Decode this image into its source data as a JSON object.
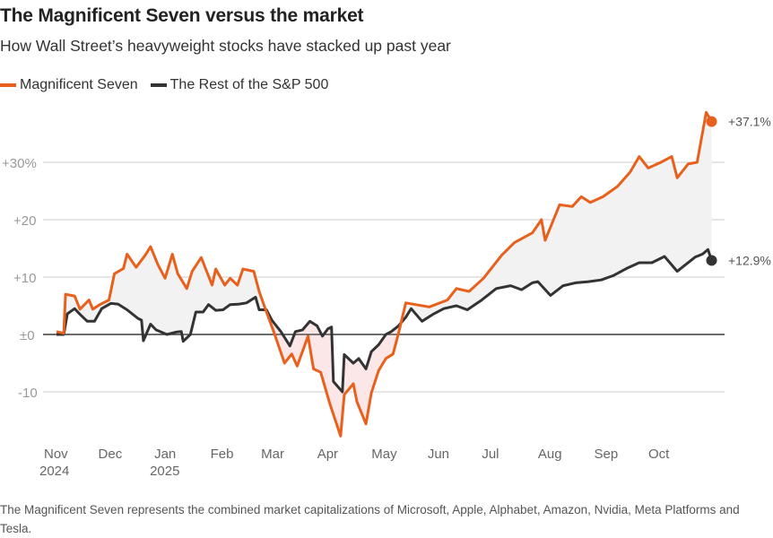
{
  "title": "The Magnificent Seven versus the market",
  "subtitle": "How Wall Street’s heavyweight stocks have stacked up past year",
  "footnote": "The Magnificent Seven represents the combined market capitalizations of Microsoft, Apple, Alphabet, Amazon, Nvidia, Meta Platforms and Tesla.",
  "chart_data": {
    "type": "line",
    "title": "The Magnificent Seven versus the market",
    "xlabel": "",
    "ylabel": "",
    "ylim": [
      -18,
      40
    ],
    "yticks": [
      {
        "v": 30,
        "label": "+30%"
      },
      {
        "v": 20,
        "label": "+20"
      },
      {
        "v": 10,
        "label": "+10"
      },
      {
        "v": 0,
        "label": "±0"
      },
      {
        "v": -10,
        "label": "-10"
      }
    ],
    "xticks": [
      {
        "d": "2024-11-01",
        "label": "Nov",
        "sub": "2024"
      },
      {
        "d": "2024-12-01",
        "label": "Dec"
      },
      {
        "d": "2025-01-01",
        "label": "Jan",
        "sub": "2025"
      },
      {
        "d": "2025-02-01",
        "label": "Feb"
      },
      {
        "d": "2025-03-01",
        "label": "Mar"
      },
      {
        "d": "2025-04-01",
        "label": "Apr"
      },
      {
        "d": "2025-05-01",
        "label": "May"
      },
      {
        "d": "2025-06-01",
        "label": "Jun"
      },
      {
        "d": "2025-07-01",
        "label": "Jul"
      },
      {
        "d": "2025-08-01",
        "label": "Aug"
      },
      {
        "d": "2025-09-01",
        "label": "Sep"
      },
      {
        "d": "2025-10-01",
        "label": "Oct"
      }
    ],
    "grid": true,
    "legend": "top-left",
    "series": [
      {
        "name": "Magnificent Seven",
        "color": "#e8601c",
        "end_label": "+37.1%",
        "points": [
          [
            "2024-11-01",
            0.5
          ],
          [
            "2024-11-05",
            0.2
          ],
          [
            "2024-11-06",
            7
          ],
          [
            "2024-11-11",
            6.7
          ],
          [
            "2024-11-14",
            4.4
          ],
          [
            "2024-11-19",
            6
          ],
          [
            "2024-11-21",
            4.4
          ],
          [
            "2024-11-25",
            5.2
          ],
          [
            "2024-11-30",
            6
          ],
          [
            "2024-12-03",
            10.6
          ],
          [
            "2024-12-08",
            11.5
          ],
          [
            "2024-12-10",
            14
          ],
          [
            "2024-12-15",
            11.7
          ],
          [
            "2024-12-20",
            13.8
          ],
          [
            "2024-12-23",
            15.3
          ],
          [
            "2024-12-27",
            12.2
          ],
          [
            "2024-12-31",
            9.8
          ],
          [
            "2025-01-04",
            14
          ],
          [
            "2025-01-07",
            10.6
          ],
          [
            "2025-01-12",
            8
          ],
          [
            "2025-01-15",
            11
          ],
          [
            "2025-01-20",
            13.4
          ],
          [
            "2025-01-26",
            8.6
          ],
          [
            "2025-01-28",
            11.4
          ],
          [
            "2025-02-02",
            8.6
          ],
          [
            "2025-02-05",
            9.8
          ],
          [
            "2025-02-09",
            8.6
          ],
          [
            "2025-02-12",
            11.4
          ],
          [
            "2025-02-18",
            11
          ],
          [
            "2025-02-21",
            7.5
          ],
          [
            "2025-02-24",
            4.8
          ],
          [
            "2025-03-01",
            0.5
          ],
          [
            "2025-03-07",
            -5
          ],
          [
            "2025-03-11",
            -3.4
          ],
          [
            "2025-03-14",
            -5.5
          ],
          [
            "2025-03-20",
            -0.3
          ],
          [
            "2025-03-23",
            -6
          ],
          [
            "2025-03-27",
            -6.6
          ],
          [
            "2025-04-01",
            -12
          ],
          [
            "2025-04-07",
            -17.7
          ],
          [
            "2025-04-09",
            -10.5
          ],
          [
            "2025-04-14",
            -8.6
          ],
          [
            "2025-04-16",
            -11.7
          ],
          [
            "2025-04-21",
            -15.6
          ],
          [
            "2025-04-24",
            -10.2
          ],
          [
            "2025-04-28",
            -6.3
          ],
          [
            "2025-05-02",
            -4.2
          ],
          [
            "2025-05-06",
            -3.4
          ],
          [
            "2025-05-09",
            0.2
          ],
          [
            "2025-05-13",
            5.5
          ],
          [
            "2025-05-26",
            4.8
          ],
          [
            "2025-06-05",
            6
          ],
          [
            "2025-06-10",
            8
          ],
          [
            "2025-06-17",
            7.5
          ],
          [
            "2025-06-25",
            9.8
          ],
          [
            "2025-07-05",
            13.8
          ],
          [
            "2025-07-12",
            16
          ],
          [
            "2025-07-22",
            17.7
          ],
          [
            "2025-07-27",
            20
          ],
          [
            "2025-07-29",
            16.4
          ],
          [
            "2025-08-06",
            22.6
          ],
          [
            "2025-08-13",
            22.3
          ],
          [
            "2025-08-18",
            24
          ],
          [
            "2025-08-23",
            23
          ],
          [
            "2025-08-30",
            24
          ],
          [
            "2025-09-07",
            25.8
          ],
          [
            "2025-09-14",
            28.3
          ],
          [
            "2025-09-19",
            31
          ],
          [
            "2025-09-24",
            29
          ],
          [
            "2025-10-01",
            30
          ],
          [
            "2025-10-07",
            31
          ],
          [
            "2025-10-10",
            27.3
          ],
          [
            "2025-10-16",
            29.7
          ],
          [
            "2025-10-21",
            30
          ],
          [
            "2025-10-26",
            38.7
          ],
          [
            "2025-10-29",
            37.1
          ]
        ]
      },
      {
        "name": "The Rest of the S&P 500",
        "color": "#333333",
        "end_label": "+12.9%",
        "points": [
          [
            "2024-11-01",
            0
          ],
          [
            "2024-11-05",
            0
          ],
          [
            "2024-11-07",
            3.6
          ],
          [
            "2024-11-11",
            4.5
          ],
          [
            "2024-11-14",
            3.5
          ],
          [
            "2024-11-18",
            2.3
          ],
          [
            "2024-11-22",
            2.3
          ],
          [
            "2024-11-26",
            4.5
          ],
          [
            "2024-12-01",
            5.4
          ],
          [
            "2024-12-05",
            5.3
          ],
          [
            "2024-12-10",
            4.3
          ],
          [
            "2024-12-16",
            2.8
          ],
          [
            "2024-12-18",
            2.5
          ],
          [
            "2024-12-19",
            -1.1
          ],
          [
            "2024-12-23",
            1.8
          ],
          [
            "2024-12-26",
            0.8
          ],
          [
            "2025-01-01",
            0
          ],
          [
            "2025-01-06",
            0.4
          ],
          [
            "2025-01-09",
            0.5
          ],
          [
            "2025-01-10",
            -1.2
          ],
          [
            "2025-01-14",
            0
          ],
          [
            "2025-01-17",
            3.9
          ],
          [
            "2025-01-21",
            3.9
          ],
          [
            "2025-01-24",
            5.2
          ],
          [
            "2025-01-28",
            4.2
          ],
          [
            "2025-02-01",
            4.3
          ],
          [
            "2025-02-05",
            5.2
          ],
          [
            "2025-02-10",
            5.3
          ],
          [
            "2025-02-14",
            5.5
          ],
          [
            "2025-02-19",
            6.5
          ],
          [
            "2025-02-21",
            4.3
          ],
          [
            "2025-02-25",
            4.3
          ],
          [
            "2025-02-28",
            2.5
          ],
          [
            "2025-03-05",
            0.5
          ],
          [
            "2025-03-10",
            -2
          ],
          [
            "2025-03-13",
            0.5
          ],
          [
            "2025-03-17",
            0.8
          ],
          [
            "2025-03-21",
            2.3
          ],
          [
            "2025-03-25",
            1.5
          ],
          [
            "2025-03-28",
            -0.3
          ],
          [
            "2025-03-31",
            1
          ],
          [
            "2025-04-02",
            1.3
          ],
          [
            "2025-04-03",
            -8.2
          ],
          [
            "2025-04-08",
            -10
          ],
          [
            "2025-04-09",
            -3.5
          ],
          [
            "2025-04-14",
            -5
          ],
          [
            "2025-04-17",
            -4.2
          ],
          [
            "2025-04-21",
            -6
          ],
          [
            "2025-04-24",
            -3
          ],
          [
            "2025-04-28",
            -1.8
          ],
          [
            "2025-05-02",
            0
          ],
          [
            "2025-05-05",
            0.5
          ],
          [
            "2025-05-09",
            1.5
          ],
          [
            "2025-05-13",
            3
          ],
          [
            "2025-05-16",
            4.5
          ],
          [
            "2025-05-22",
            2.3
          ],
          [
            "2025-05-28",
            3.5
          ],
          [
            "2025-06-03",
            4.5
          ],
          [
            "2025-06-10",
            5
          ],
          [
            "2025-06-16",
            4.3
          ],
          [
            "2025-06-24",
            6
          ],
          [
            "2025-07-02",
            8
          ],
          [
            "2025-07-10",
            8.5
          ],
          [
            "2025-07-16",
            7.8
          ],
          [
            "2025-07-22",
            9
          ],
          [
            "2025-07-25",
            9.2
          ],
          [
            "2025-08-01",
            6.8
          ],
          [
            "2025-08-08",
            8.5
          ],
          [
            "2025-08-15",
            9
          ],
          [
            "2025-08-22",
            9.2
          ],
          [
            "2025-08-29",
            9.5
          ],
          [
            "2025-09-05",
            10.3
          ],
          [
            "2025-09-12",
            11.5
          ],
          [
            "2025-09-19",
            12.5
          ],
          [
            "2025-09-26",
            12.5
          ],
          [
            "2025-10-03",
            13.6
          ],
          [
            "2025-10-10",
            11
          ],
          [
            "2025-10-14",
            12
          ],
          [
            "2025-10-20",
            13.5
          ],
          [
            "2025-10-24",
            14
          ],
          [
            "2025-10-27",
            14.8
          ],
          [
            "2025-10-29",
            12.9
          ]
        ]
      }
    ],
    "fill_colors": {
      "above": "#f2f2f2",
      "below": "#fbe6e8"
    }
  }
}
